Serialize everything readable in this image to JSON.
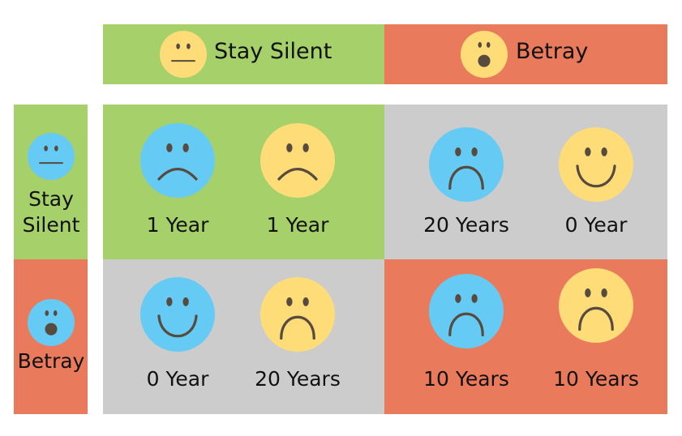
{
  "colors": {
    "green": "#a5d06a",
    "red": "#ea7a5c",
    "gray": "#cccccc",
    "blue": "#66cbf4",
    "yellow": "#fedc78",
    "feature": "#574a3e"
  },
  "column_headers": [
    {
      "label": "Stay Silent",
      "face": {
        "mood": "neutral",
        "color": "yellow"
      }
    },
    {
      "label": "Betray",
      "face": {
        "mood": "surprised",
        "color": "yellow"
      }
    }
  ],
  "row_headers": [
    {
      "label_line1": "Stay",
      "label_line2": "Silent",
      "face": {
        "mood": "neutral",
        "color": "blue"
      }
    },
    {
      "label": "Betray",
      "face": {
        "mood": "surprised",
        "color": "blue"
      }
    }
  ],
  "cells": [
    {
      "blue": {
        "mood": "sad",
        "sentence": "1 Year"
      },
      "yellow": {
        "mood": "sad",
        "sentence": "1 Year"
      }
    },
    {
      "blue": {
        "mood": "very-sad",
        "sentence": "20 Years"
      },
      "yellow": {
        "mood": "happy",
        "sentence": "0 Year"
      }
    },
    {
      "blue": {
        "mood": "happy",
        "sentence": "0 Year"
      },
      "yellow": {
        "mood": "very-sad",
        "sentence": "20 Years"
      }
    },
    {
      "blue": {
        "mood": "very-sad",
        "sentence": "10 Years"
      },
      "yellow": {
        "mood": "very-sad",
        "sentence": "10 Years"
      }
    }
  ]
}
